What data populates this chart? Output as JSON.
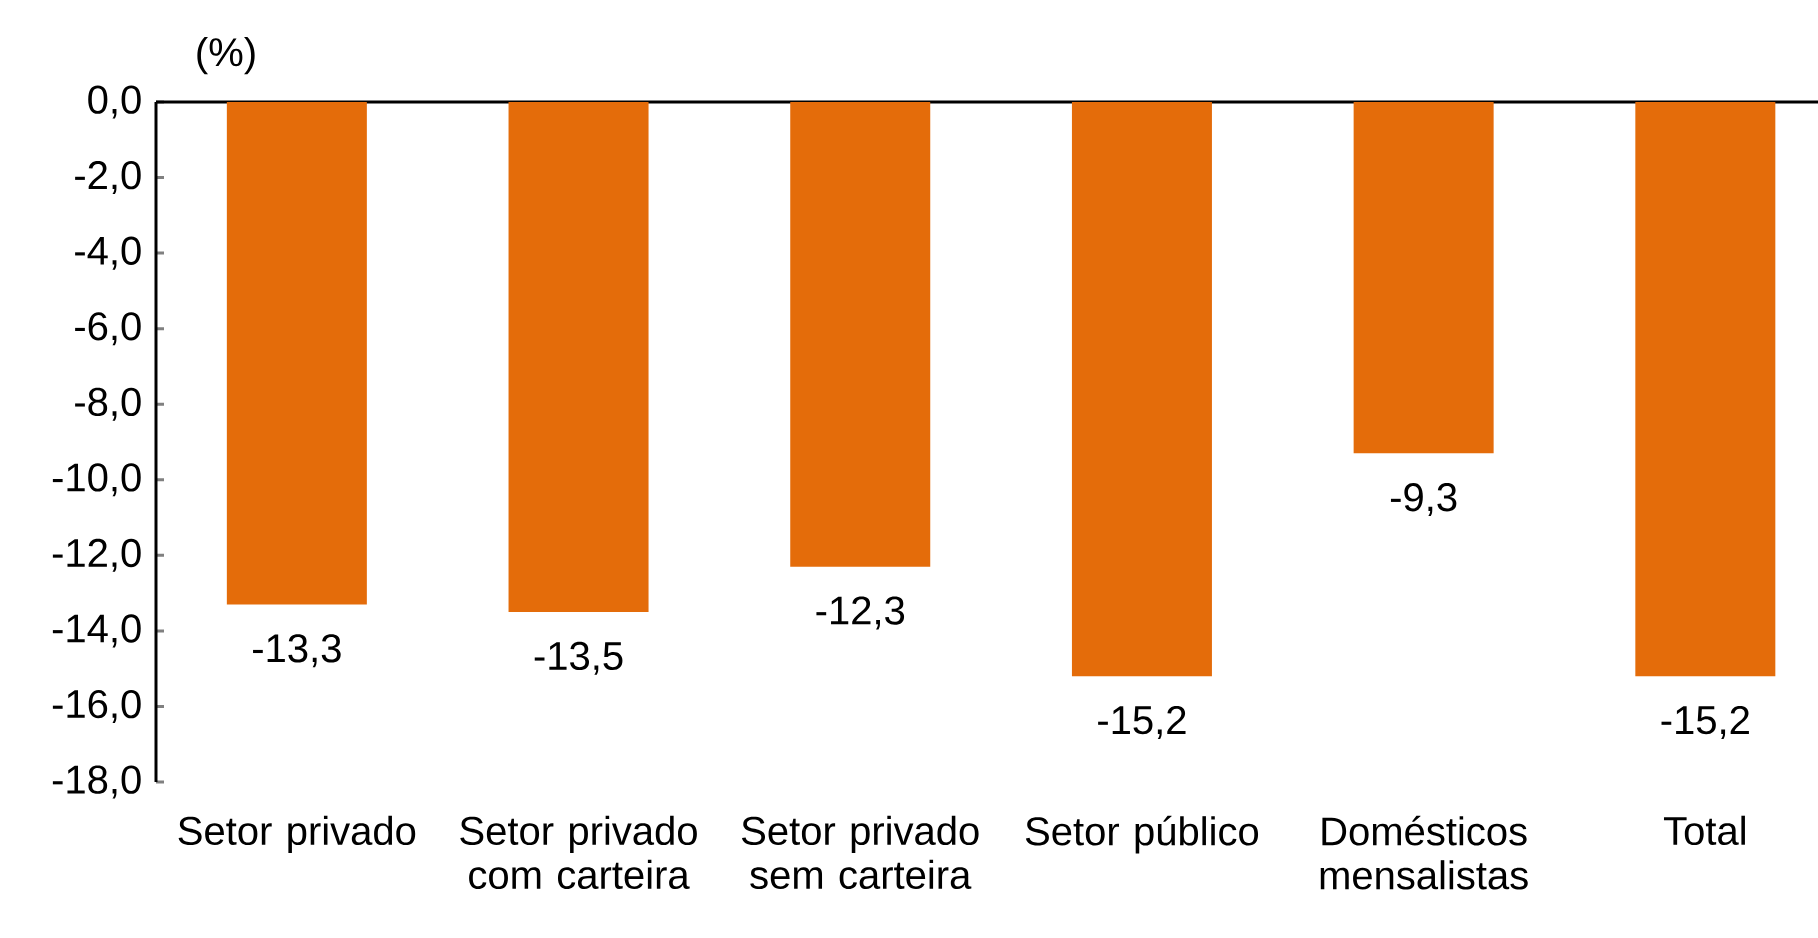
{
  "chart_data": {
    "type": "bar",
    "ylabel": "(%)",
    "color": "#e46c0a",
    "categories": [
      "Setor privado",
      "Setor privado com carteira",
      "Setor privado sem carteira",
      "Setor público",
      "Domésticos mensalistas",
      "Total"
    ],
    "values": [
      -13.3,
      -13.5,
      -12.3,
      -15.2,
      -9.3,
      -15.2
    ],
    "value_labels": [
      "-13,3",
      "-13,5",
      "-12,3",
      "-15,2",
      "-9,3",
      "-15,2"
    ],
    "ylim": [
      -18,
      0
    ],
    "yticks": [
      {
        "value": 0,
        "label": "0,0"
      },
      {
        "value": -2,
        "label": "-2,0"
      },
      {
        "value": -4,
        "label": "-4,0"
      },
      {
        "value": -6,
        "label": "-6,0"
      },
      {
        "value": -8,
        "label": "-8,0"
      },
      {
        "value": -10,
        "label": "-10,0"
      },
      {
        "value": -12,
        "label": "-12,0"
      },
      {
        "value": -14,
        "label": "-14,0"
      },
      {
        "value": -16,
        "label": "-16,0"
      },
      {
        "value": -18,
        "label": "-18,0"
      }
    ]
  }
}
